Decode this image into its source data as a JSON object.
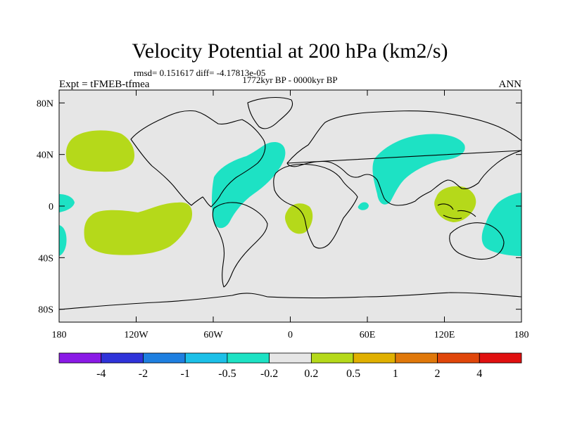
{
  "chart_data": {
    "type": "heatmap",
    "title": "Velocity Potential at 200 hPa (km2/s)",
    "stats_line": "rmsd= 0.151617 diff= -4.17813e-05",
    "period_line": "1772kyr BP - 0000kyr BP",
    "left_label": "Expt = tFMEB-tfmea",
    "right_label": "ANN",
    "x_axis": {
      "range": [
        -180,
        180
      ],
      "ticks": [
        -180,
        -120,
        -60,
        0,
        60,
        120,
        180
      ],
      "tick_labels": [
        "180",
        "120W",
        "60W",
        "0",
        "60E",
        "120E",
        "180"
      ]
    },
    "y_axis": {
      "range": [
        -90,
        90
      ],
      "ticks": [
        80,
        40,
        0,
        -40,
        -80
      ],
      "tick_labels": [
        "80N",
        "40N",
        "0",
        "40S",
        "80S"
      ]
    },
    "colorbar": {
      "levels": [
        "-4",
        "-2",
        "-1",
        "-0.5",
        "-0.2",
        "0.2",
        "0.5",
        "1",
        "2",
        "4"
      ],
      "colors": [
        "#8a1ae6",
        "#2f33d9",
        "#1e7fe0",
        "#1cc0e8",
        "#1de2c4",
        "#e6e6e6",
        "#b5d91a",
        "#e0b000",
        "#e0780a",
        "#e0460a",
        "#e01010"
      ]
    },
    "regions": [
      {
        "name": "N Pacific positive",
        "level": "0.2 to 0.5",
        "lon": [
          -180,
          -140
        ],
        "lat": [
          25,
          52
        ]
      },
      {
        "name": "S Pacific positive",
        "level": "0.2 to 0.5",
        "lon": [
          -160,
          -75
        ],
        "lat": [
          -35,
          5
        ]
      },
      {
        "name": "Atlantic negative",
        "level": "-0.5 to -0.2",
        "lon": [
          -55,
          -15
        ],
        "lat": [
          -15,
          45
        ]
      },
      {
        "name": "Africa positive",
        "level": "0.2 to 0.5",
        "lon": [
          -5,
          15
        ],
        "lat": [
          -20,
          0
        ]
      },
      {
        "name": "Asia negative",
        "level": "-0.5 to -0.2",
        "lon": [
          60,
          135
        ],
        "lat": [
          0,
          55
        ]
      },
      {
        "name": "Maritime continent positive",
        "level": "0.2 to 0.5",
        "lon": [
          110,
          145
        ],
        "lat": [
          -10,
          15
        ]
      },
      {
        "name": "W Pacific negative",
        "level": "-0.5 to -0.2",
        "lon": [
          140,
          180
        ],
        "lat": [
          -35,
          10
        ]
      }
    ]
  }
}
